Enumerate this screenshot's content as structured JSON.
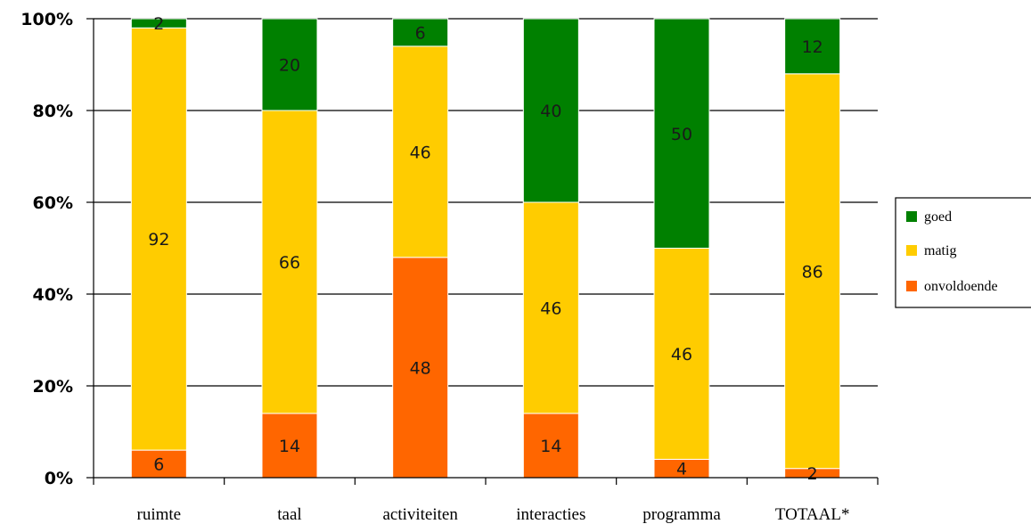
{
  "chart_data": {
    "type": "bar",
    "stacked": true,
    "normalized_percent": true,
    "categories": [
      "ruimte",
      "taal",
      "activiteiten",
      "interacties",
      "programma",
      "TOTAAL*"
    ],
    "series": [
      {
        "name": "onvoldoende",
        "color": "#ff6600",
        "values": [
          6,
          14,
          48,
          14,
          4,
          2
        ]
      },
      {
        "name": "matig",
        "color": "#ffcc00",
        "values": [
          92,
          66,
          46,
          46,
          46,
          86
        ]
      },
      {
        "name": "goed",
        "color": "#008000",
        "values": [
          2,
          20,
          6,
          40,
          50,
          12
        ]
      }
    ],
    "ylim": [
      0,
      100
    ],
    "yticks": [
      "0%",
      "20%",
      "40%",
      "60%",
      "80%",
      "100%"
    ],
    "grid": true,
    "legend": {
      "position": "right",
      "entries": [
        "goed",
        "matig",
        "onvoldoende"
      ]
    },
    "title": "",
    "xlabel": "",
    "ylabel": ""
  }
}
